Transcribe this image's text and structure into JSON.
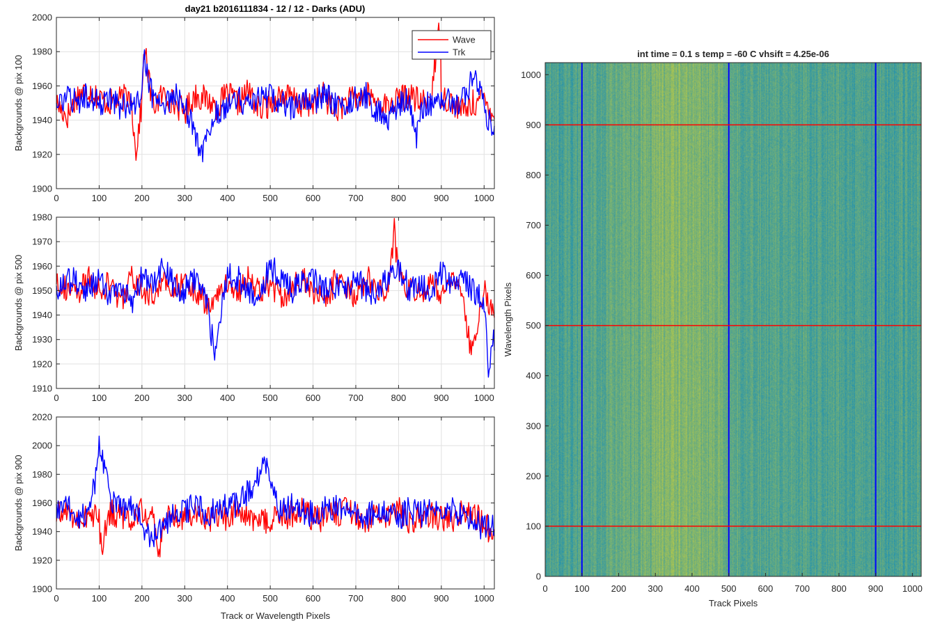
{
  "figure_title": "day21 b2016111834 - 12 / 12 - Darks (ADU)",
  "colors": {
    "wave": "#ff0000",
    "trk": "#0000ff"
  },
  "chart_data": [
    {
      "type": "line",
      "title": "day21 b2016111834 - 12 / 12 - Darks (ADU)",
      "ylabel": "Backgrounds @ pix 100",
      "xlabel": "",
      "xlim": [
        0,
        1024
      ],
      "ylim": [
        1900,
        2000
      ],
      "xticks": [
        0,
        100,
        200,
        300,
        400,
        500,
        600,
        700,
        800,
        900,
        1000
      ],
      "yticks": [
        1900,
        1920,
        1940,
        1960,
        1980,
        2000
      ],
      "grid": true,
      "legend": {
        "placement": "top-right",
        "entries": [
          "Wave",
          "Trk"
        ]
      },
      "series": [
        {
          "name": "Wave",
          "color": "#ff0000",
          "x": [
            0,
            25,
            50,
            75,
            100,
            125,
            150,
            175,
            185,
            200,
            205,
            225,
            250,
            275,
            300,
            325,
            350,
            375,
            400,
            425,
            450,
            475,
            500,
            525,
            550,
            575,
            600,
            625,
            650,
            675,
            700,
            725,
            750,
            775,
            800,
            825,
            850,
            875,
            898,
            900,
            925,
            950,
            975,
            1000,
            1020
          ],
          "y": [
            1950,
            1942,
            1955,
            1958,
            1953,
            1950,
            1952,
            1955,
            1920,
            1950,
            1984,
            1948,
            1955,
            1950,
            1945,
            1955,
            1952,
            1948,
            1955,
            1950,
            1957,
            1945,
            1950,
            1955,
            1953,
            1948,
            1950,
            1955,
            1945,
            1950,
            1953,
            1955,
            1950,
            1948,
            1952,
            1955,
            1950,
            1953,
            1998,
            1955,
            1950,
            1945,
            1950,
            1952,
            1945
          ]
        },
        {
          "name": "Trk",
          "color": "#0000ff",
          "x": [
            0,
            25,
            50,
            75,
            100,
            125,
            150,
            175,
            200,
            205,
            225,
            250,
            275,
            300,
            320,
            340,
            350,
            375,
            400,
            425,
            450,
            475,
            500,
            525,
            550,
            575,
            600,
            625,
            650,
            675,
            700,
            725,
            750,
            775,
            800,
            825,
            840,
            850,
            875,
            900,
            925,
            950,
            975,
            1000,
            1020
          ],
          "y": [
            1948,
            1952,
            1950,
            1955,
            1950,
            1953,
            1948,
            1950,
            1952,
            1975,
            1953,
            1950,
            1955,
            1948,
            1935,
            1918,
            1930,
            1945,
            1950,
            1952,
            1950,
            1955,
            1953,
            1950,
            1948,
            1952,
            1950,
            1955,
            1950,
            1948,
            1953,
            1955,
            1945,
            1940,
            1950,
            1952,
            1928,
            1945,
            1950,
            1955,
            1948,
            1952,
            1965,
            1950,
            1930
          ]
        }
      ]
    },
    {
      "type": "line",
      "title": "",
      "ylabel": "Backgrounds @ pix 500",
      "xlabel": "",
      "xlim": [
        0,
        1024
      ],
      "ylim": [
        1910,
        1980
      ],
      "xticks": [
        0,
        100,
        200,
        300,
        400,
        500,
        600,
        700,
        800,
        900,
        1000
      ],
      "yticks": [
        1910,
        1920,
        1930,
        1940,
        1950,
        1960,
        1970,
        1980
      ],
      "grid": true,
      "series": [
        {
          "name": "Wave",
          "color": "#ff0000",
          "x": [
            0,
            25,
            50,
            75,
            100,
            125,
            150,
            175,
            200,
            225,
            250,
            275,
            300,
            325,
            350,
            375,
            400,
            425,
            450,
            475,
            500,
            525,
            550,
            575,
            600,
            625,
            650,
            675,
            700,
            725,
            750,
            775,
            790,
            800,
            825,
            850,
            875,
            900,
            925,
            950,
            970,
            1000,
            1020
          ],
          "y": [
            1955,
            1950,
            1948,
            1955,
            1950,
            1953,
            1945,
            1955,
            1950,
            1948,
            1953,
            1950,
            1955,
            1950,
            1945,
            1948,
            1953,
            1950,
            1955,
            1950,
            1952,
            1948,
            1950,
            1955,
            1950,
            1945,
            1953,
            1950,
            1948,
            1955,
            1952,
            1950,
            1975,
            1955,
            1950,
            1948,
            1953,
            1950,
            1955,
            1945,
            1925,
            1950,
            1940
          ]
        },
        {
          "name": "Trk",
          "color": "#0000ff",
          "x": [
            0,
            25,
            50,
            75,
            100,
            125,
            150,
            175,
            200,
            225,
            250,
            275,
            300,
            325,
            350,
            370,
            380,
            400,
            425,
            450,
            475,
            500,
            525,
            550,
            575,
            600,
            625,
            650,
            675,
            700,
            725,
            750,
            775,
            800,
            825,
            850,
            875,
            900,
            925,
            950,
            975,
            1000,
            1010,
            1020
          ],
          "y": [
            1950,
            1955,
            1953,
            1950,
            1955,
            1948,
            1950,
            1945,
            1955,
            1953,
            1960,
            1952,
            1950,
            1955,
            1945,
            1925,
            1935,
            1958,
            1955,
            1950,
            1948,
            1960,
            1955,
            1950,
            1953,
            1955,
            1950,
            1952,
            1950,
            1955,
            1950,
            1948,
            1955,
            1960,
            1950,
            1952,
            1950,
            1958,
            1953,
            1955,
            1950,
            1945,
            1920,
            1930
          ]
        }
      ]
    },
    {
      "type": "line",
      "title": "",
      "ylabel": "Backgrounds @ pix 900",
      "xlabel": "Track or Wavelength Pixels",
      "xlim": [
        0,
        1024
      ],
      "ylim": [
        1900,
        2020
      ],
      "xticks": [
        0,
        100,
        200,
        300,
        400,
        500,
        600,
        700,
        800,
        900,
        1000
      ],
      "yticks": [
        1900,
        1920,
        1940,
        1960,
        1980,
        2000,
        2020
      ],
      "grid": true,
      "series": [
        {
          "name": "Wave",
          "color": "#ff0000",
          "x": [
            0,
            25,
            50,
            75,
            100,
            105,
            125,
            150,
            175,
            200,
            225,
            240,
            250,
            275,
            300,
            325,
            350,
            375,
            400,
            425,
            450,
            475,
            500,
            525,
            550,
            575,
            600,
            625,
            650,
            675,
            700,
            725,
            750,
            775,
            800,
            825,
            850,
            875,
            900,
            925,
            950,
            975,
            1000,
            1020
          ],
          "y": [
            1950,
            1955,
            1948,
            1952,
            1950,
            1925,
            1955,
            1950,
            1948,
            1955,
            1950,
            1922,
            1948,
            1952,
            1950,
            1955,
            1948,
            1952,
            1950,
            1955,
            1950,
            1945,
            1948,
            1950,
            1952,
            1955,
            1948,
            1950,
            1952,
            1955,
            1950,
            1948,
            1952,
            1950,
            1955,
            1948,
            1950,
            1952,
            1950,
            1948,
            1955,
            1950,
            1948,
            1935
          ]
        },
        {
          "name": "Trk",
          "color": "#0000ff",
          "x": [
            0,
            25,
            50,
            75,
            90,
            100,
            110,
            125,
            150,
            175,
            200,
            225,
            250,
            275,
            300,
            325,
            350,
            375,
            425,
            450,
            475,
            490,
            500,
            525,
            550,
            575,
            600,
            625,
            650,
            675,
            700,
            725,
            750,
            775,
            800,
            825,
            850,
            875,
            900,
            925,
            950,
            975,
            1000,
            1020
          ],
          "y": [
            1955,
            1958,
            1950,
            1955,
            1975,
            2003,
            1990,
            1965,
            1955,
            1958,
            1945,
            1935,
            1945,
            1952,
            1955,
            1958,
            1952,
            1955,
            1960,
            1970,
            1978,
            1988,
            1970,
            1955,
            1958,
            1955,
            1952,
            1955,
            1958,
            1952,
            1955,
            1950,
            1955,
            1952,
            1950,
            1955,
            1952,
            1955,
            1950,
            1955,
            1952,
            1948,
            1942,
            1945
          ]
        }
      ]
    },
    {
      "type": "heatmap",
      "title": "int time = 0.1 s   temp = -60 C   vhsift = 4.25e-06",
      "xlabel": "Track Pixels",
      "ylabel": "Wavelength Pixels",
      "xlim": [
        0,
        1024
      ],
      "ylim": [
        0,
        1024
      ],
      "xticks": [
        0,
        100,
        200,
        300,
        400,
        500,
        600,
        700,
        800,
        900,
        1000
      ],
      "yticks": [
        0,
        100,
        200,
        300,
        400,
        500,
        600,
        700,
        800,
        900,
        1000
      ],
      "colormap": "parula",
      "vertical_markers": {
        "color": "#0000ff",
        "x": [
          100,
          500,
          900
        ]
      },
      "horizontal_markers": {
        "color": "#ff0000",
        "y": [
          100,
          500,
          900
        ]
      }
    }
  ]
}
